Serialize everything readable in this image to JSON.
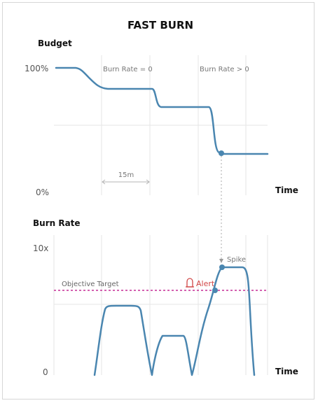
{
  "title": "FAST BURN",
  "top_panel": {
    "y_title": "Budget",
    "y_max_label": "100%",
    "y_min_label": "0%",
    "x_title": "Time",
    "annotation_left": "Burn Rate = 0",
    "annotation_right": "Burn Rate > 0",
    "interval_label": "15m"
  },
  "bottom_panel": {
    "y_title": "Burn Rate",
    "y_max_label": "10x",
    "y_min_label": "0",
    "x_title": "Time",
    "target_label": "Objective Target",
    "alert_label": "Alert",
    "spike_label": "Spike"
  },
  "colors": {
    "curve": "#4a86b0",
    "target": "#c62d95",
    "alert": "#d14646"
  },
  "icons": {
    "alert": "bell-icon"
  }
}
